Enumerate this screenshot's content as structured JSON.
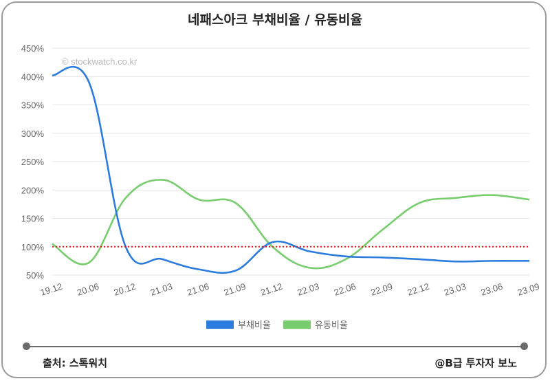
{
  "title": "네패스아크 부채비율 / 유동비율",
  "watermark": "© stockwatch.co.kr",
  "footer": {
    "source": "출처: 스톡워치",
    "author": "@B급 투자자 보노"
  },
  "chart_data": {
    "type": "line",
    "title": "네패스아크 부채비율 / 유동비율",
    "x": [
      "19.12",
      "20.06",
      "20.12",
      "21.03",
      "21.06",
      "21.09",
      "21.12",
      "22.03",
      "22.06",
      "22.09",
      "22.12",
      "23.03",
      "23.06",
      "23.09"
    ],
    "y_ticks": [
      "50%",
      "100%",
      "150%",
      "200%",
      "250%",
      "300%",
      "350%",
      "400%",
      "450%"
    ],
    "ylim": [
      50,
      450
    ],
    "grid": true,
    "legend_position": "bottom",
    "series": [
      {
        "name": "부채비율",
        "color": "#2b7bde",
        "values": [
          402,
          390,
          100,
          78,
          60,
          58,
          108,
          92,
          83,
          81,
          78,
          74,
          75,
          75
        ]
      },
      {
        "name": "유동비율",
        "color": "#77cc6e",
        "values": [
          105,
          72,
          186,
          218,
          183,
          177,
          100,
          63,
          78,
          130,
          177,
          186,
          191,
          183
        ]
      }
    ],
    "reference_line": {
      "value": 100,
      "color": "#e21c1c"
    }
  }
}
